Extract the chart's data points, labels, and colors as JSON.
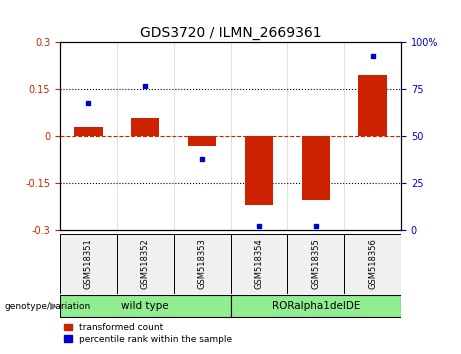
{
  "title": "GDS3720 / ILMN_2669361",
  "categories": [
    "GSM518351",
    "GSM518352",
    "GSM518353",
    "GSM518354",
    "GSM518355",
    "GSM518356"
  ],
  "red_bars": [
    0.03,
    0.06,
    -0.03,
    -0.22,
    -0.205,
    0.195
  ],
  "blue_dots_pct": [
    68,
    77,
    38,
    2,
    2,
    93
  ],
  "ylim_left": [
    -0.3,
    0.3
  ],
  "ylim_right": [
    0,
    100
  ],
  "yticks_left": [
    -0.3,
    -0.15,
    0.0,
    0.15,
    0.3
  ],
  "yticks_right": [
    0,
    25,
    50,
    75,
    100
  ],
  "ytick_labels_left": [
    "-0.3",
    "-0.15",
    "0",
    "0.15",
    "0.3"
  ],
  "ytick_labels_right": [
    "0",
    "25",
    "50",
    "75",
    "100%"
  ],
  "hline_y": 0.0,
  "dotted_lines": [
    -0.15,
    0.15
  ],
  "group1_label": "wild type",
  "group2_label": "RORalpha1delDE",
  "group_label_prefix": "genotype/variation",
  "group1_indices": [
    0,
    1,
    2
  ],
  "group2_indices": [
    3,
    4,
    5
  ],
  "group_color": "#90EE90",
  "bar_color": "#CC2200",
  "dot_color": "#0000CC",
  "legend1_label": "transformed count",
  "legend2_label": "percentile rank within the sample",
  "left_tick_color": "#CC2200",
  "right_tick_color": "#0000CC",
  "title_fontsize": 10,
  "tick_fontsize": 7,
  "bar_width": 0.5,
  "bg_color": "#F0F0F0"
}
